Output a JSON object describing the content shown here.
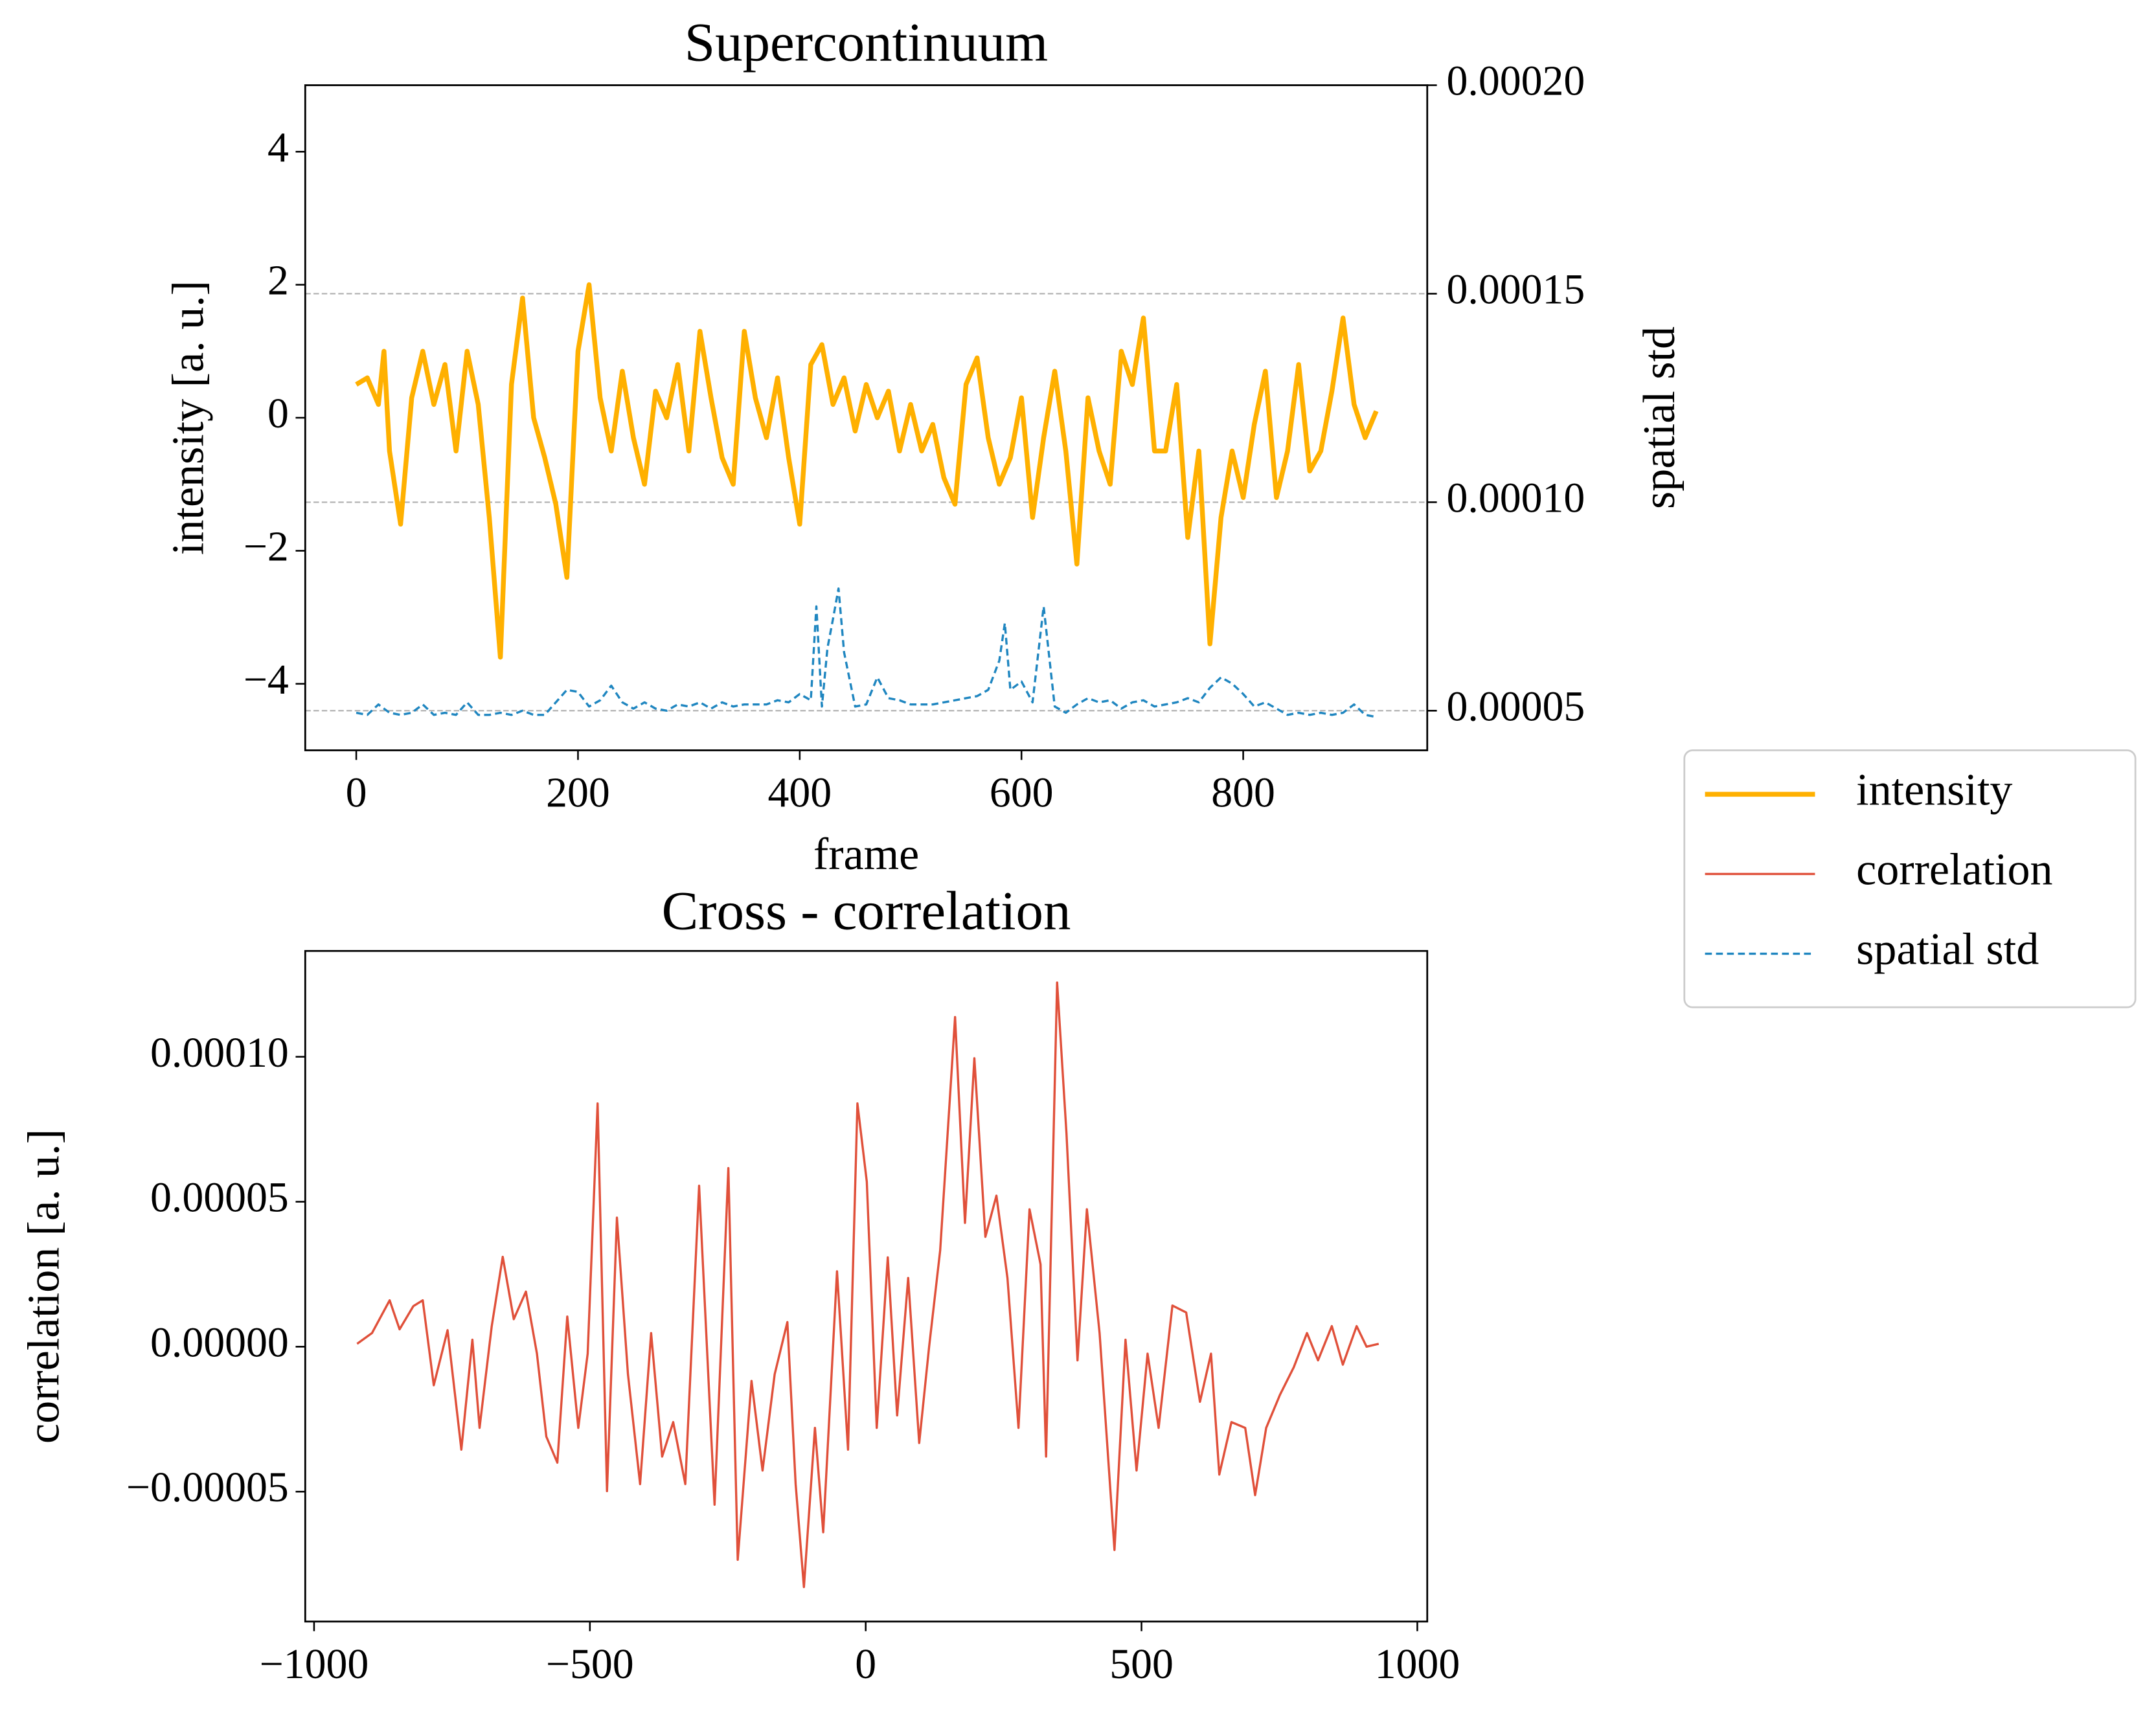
{
  "chart_data": [
    {
      "type": "line",
      "title": "Supercontinuum",
      "xlabel": "frame",
      "ylabel": "intensity [a. u.]",
      "y2label": "spatial std",
      "xlim": [
        -46,
        966
      ],
      "xticks": [
        0,
        200,
        400,
        600,
        800
      ],
      "ylim": [
        -5,
        5
      ],
      "yticks": [
        {
          "value": -4,
          "label": "−4"
        },
        {
          "value": -2,
          "label": "−2"
        },
        0,
        2,
        4
      ],
      "y2lim": [
        4.05e-05,
        0.0002
      ],
      "y2ticks": [
        {
          "value": 5e-05,
          "label": "0.00005"
        },
        {
          "value": 0.0001,
          "label": "0.00010"
        },
        {
          "value": 0.00015,
          "label": "0.00015"
        },
        {
          "value": 0.0002,
          "label": "0.00020"
        }
      ],
      "grid": "y2",
      "legend": "outside right",
      "series": [
        {
          "name": "intensity",
          "color": "#ffb000",
          "linestyle": "solid",
          "x": [
            0,
            10,
            20,
            25,
            30,
            40,
            50,
            60,
            70,
            80,
            90,
            100,
            110,
            120,
            130,
            140,
            150,
            160,
            170,
            180,
            190,
            200,
            210,
            220,
            230,
            240,
            250,
            260,
            270,
            280,
            290,
            300,
            310,
            320,
            330,
            340,
            350,
            360,
            370,
            380,
            390,
            400,
            410,
            420,
            430,
            440,
            450,
            460,
            470,
            480,
            490,
            500,
            510,
            520,
            530,
            540,
            550,
            560,
            570,
            580,
            590,
            600,
            610,
            620,
            630,
            640,
            650,
            660,
            670,
            680,
            690,
            700,
            710,
            720,
            730,
            740,
            750,
            760,
            770,
            780,
            790,
            800,
            810,
            820,
            830,
            840,
            850,
            860,
            870,
            880,
            890,
            900,
            910,
            920
          ],
          "values": [
            0.5,
            0.6,
            0.2,
            1.0,
            -0.5,
            -1.6,
            0.3,
            1.0,
            0.2,
            0.8,
            -0.5,
            1.0,
            0.2,
            -1.5,
            -3.6,
            0.5,
            1.8,
            0.0,
            -0.6,
            -1.3,
            -2.4,
            1.0,
            2.0,
            0.3,
            -0.5,
            0.7,
            -0.3,
            -1.0,
            0.4,
            0.0,
            0.8,
            -0.5,
            1.3,
            0.3,
            -0.6,
            -1.0,
            1.3,
            0.3,
            -0.3,
            0.6,
            -0.6,
            -1.6,
            0.8,
            1.1,
            0.2,
            0.6,
            -0.2,
            0.5,
            0.0,
            0.4,
            -0.5,
            0.2,
            -0.5,
            -0.1,
            -0.9,
            -1.3,
            0.5,
            0.9,
            -0.3,
            -1.0,
            -0.6,
            0.3,
            -1.5,
            -0.3,
            0.7,
            -0.5,
            -2.2,
            0.3,
            -0.5,
            -1.0,
            1.0,
            0.5,
            1.5,
            -0.5,
            -0.5,
            0.5,
            -1.8,
            -0.5,
            -3.4,
            -1.5,
            -0.5,
            -1.2,
            -0.1,
            0.7,
            -1.2,
            -0.5,
            0.8,
            -0.8,
            -0.5,
            0.4,
            1.5,
            0.2,
            -0.3,
            0.1
          ]
        },
        {
          "name": "spatial std",
          "color": "#1f86c0",
          "linestyle": "dashed",
          "axis": "y2",
          "x": [
            0,
            10,
            20,
            30,
            40,
            50,
            60,
            70,
            80,
            90,
            100,
            110,
            120,
            130,
            140,
            150,
            160,
            170,
            180,
            190,
            200,
            210,
            220,
            230,
            240,
            250,
            260,
            270,
            280,
            290,
            300,
            310,
            320,
            330,
            340,
            350,
            360,
            370,
            380,
            390,
            400,
            410,
            415,
            420,
            425,
            430,
            435,
            440,
            450,
            460,
            470,
            480,
            490,
            500,
            520,
            540,
            560,
            570,
            580,
            585,
            590,
            600,
            610,
            620,
            630,
            640,
            650,
            660,
            670,
            680,
            690,
            700,
            710,
            720,
            730,
            740,
            750,
            760,
            770,
            780,
            790,
            800,
            810,
            820,
            830,
            840,
            850,
            860,
            870,
            880,
            890,
            900,
            910,
            920
          ],
          "values": [
            4.95e-05,
            4.9e-05,
            5.15e-05,
            4.95e-05,
            4.9e-05,
            4.95e-05,
            5.15e-05,
            4.9e-05,
            4.95e-05,
            4.9e-05,
            5.2e-05,
            4.9e-05,
            4.9e-05,
            4.95e-05,
            4.9e-05,
            5e-05,
            4.9e-05,
            4.9e-05,
            5.2e-05,
            5.5e-05,
            5.45e-05,
            5.1e-05,
            5.25e-05,
            5.6e-05,
            5.2e-05,
            5.05e-05,
            5.2e-05,
            5.05e-05,
            5e-05,
            5.15e-05,
            5.1e-05,
            5.2e-05,
            5.05e-05,
            5.2e-05,
            5.1e-05,
            5.15e-05,
            5.15e-05,
            5.15e-05,
            5.25e-05,
            5.2e-05,
            5.4e-05,
            5.25e-05,
            7.5e-05,
            5.1e-05,
            6.5e-05,
            7.2e-05,
            7.93e-05,
            6.4e-05,
            5.1e-05,
            5.15e-05,
            5.8e-05,
            5.3e-05,
            5.25e-05,
            5.15e-05,
            5.15e-05,
            5.25e-05,
            5.35e-05,
            5.5e-05,
            6.2e-05,
            7.1e-05,
            5.5e-05,
            5.7e-05,
            5.2e-05,
            7.5e-05,
            5.1e-05,
            4.95e-05,
            5.15e-05,
            5.3e-05,
            5.2e-05,
            5.25e-05,
            5.05e-05,
            5.2e-05,
            5.25e-05,
            5.1e-05,
            5.15e-05,
            5.2e-05,
            5.3e-05,
            5.2e-05,
            5.55e-05,
            5.8e-05,
            5.65e-05,
            5.4e-05,
            5.1e-05,
            5.2e-05,
            5.05e-05,
            4.9e-05,
            4.95e-05,
            4.9e-05,
            4.95e-05,
            4.9e-05,
            4.95e-05,
            5.15e-05,
            4.9e-05,
            4.85e-05
          ]
        }
      ]
    },
    {
      "type": "line",
      "title": "Cross - correlation",
      "ylabel": "correlation [a. u.]",
      "xlim": [
        -1016,
        1018
      ],
      "xticks": [
        {
          "value": -1000,
          "label": "−1000"
        },
        {
          "value": -500,
          "label": "−500"
        },
        0,
        500,
        1000
      ],
      "ylim": [
        -9.48e-05,
        0.0001365
      ],
      "yticks": [
        {
          "value": -5e-05,
          "label": "−0.00005"
        },
        {
          "value": 0,
          "label": "0.00000"
        },
        {
          "value": 5e-05,
          "label": "0.00005"
        },
        {
          "value": 0.0001,
          "label": "0.00010"
        }
      ],
      "series": [
        {
          "name": "correlation",
          "color": "#e0503a",
          "linestyle": "solid",
          "x": [
            -922,
            -895,
            -863,
            -845,
            -820,
            -803,
            -783,
            -758,
            -733,
            -713,
            -700,
            -678,
            -658,
            -638,
            -616,
            -596,
            -579,
            -559,
            -541,
            -521,
            -504,
            -486,
            -469,
            -451,
            -431,
            -409,
            -389,
            -369,
            -349,
            -327,
            -302,
            -274,
            -249,
            -232,
            -207,
            -187,
            -165,
            -142,
            -127,
            -112,
            -92,
            -77,
            -52,
            -32,
            -15,
            2,
            20,
            40,
            57,
            77,
            97,
            115,
            135,
            162,
            180,
            197,
            217,
            237,
            257,
            277,
            297,
            317,
            327,
            347,
            364,
            384,
            401,
            424,
            451,
            471,
            491,
            511,
            531,
            556,
            581,
            606,
            626,
            641,
            663,
            688,
            706,
            726,
            751,
            776,
            800,
            820,
            845,
            865,
            890,
            908,
            930
          ],
          "values": [
            1e-06,
            4.7e-06,
            1.6e-05,
            6e-06,
            1.4e-05,
            1.6e-05,
            -1.33e-05,
            5.7e-06,
            -3.55e-05,
            2.4e-06,
            -2.8e-05,
            7e-06,
            3.1e-05,
            9.5e-06,
            1.9e-05,
            -2.4e-06,
            -3.1e-05,
            -4e-05,
            1.04e-05,
            -2.8e-05,
            -2.4e-06,
            8.39e-05,
            -4.98e-05,
            4.45e-05,
            -9.5e-06,
            -4.74e-05,
            4.7e-06,
            -3.79e-05,
            -2.6e-05,
            -4.74e-05,
            5.55e-05,
            -5.45e-05,
            6.16e-05,
            -7.35e-05,
            -1.18e-05,
            -4.27e-05,
            -9.5e-06,
            8.5e-06,
            -4.74e-05,
            -8.29e-05,
            -2.8e-05,
            -6.4e-05,
            2.6e-05,
            -3.55e-05,
            8.39e-05,
            5.69e-05,
            -2.8e-05,
            3.08e-05,
            -2.37e-05,
            2.37e-05,
            -3.32e-05,
            0,
            3.32e-05,
            0.0001137,
            4.27e-05,
            9.95e-05,
            3.79e-05,
            5.21e-05,
            2.37e-05,
            -2.8e-05,
            4.74e-05,
            2.84e-05,
            -3.79e-05,
            0.0001256,
            7.35e-05,
            -4.7e-06,
            4.74e-05,
            4.7e-06,
            -7.01e-05,
            2.4e-06,
            -4.27e-05,
            -2.4e-06,
            -2.8e-05,
            1.42e-05,
            1.18e-05,
            -1.9e-05,
            -2.4e-06,
            -4.41e-05,
            -2.6e-05,
            -2.8e-05,
            -5.12e-05,
            -2.8e-05,
            -1.66e-05,
            -7.1e-06,
            4.7e-06,
            -4.7e-06,
            7.1e-06,
            -6.2e-06,
            7.1e-06,
            0,
            1e-06
          ]
        }
      ]
    }
  ]
}
